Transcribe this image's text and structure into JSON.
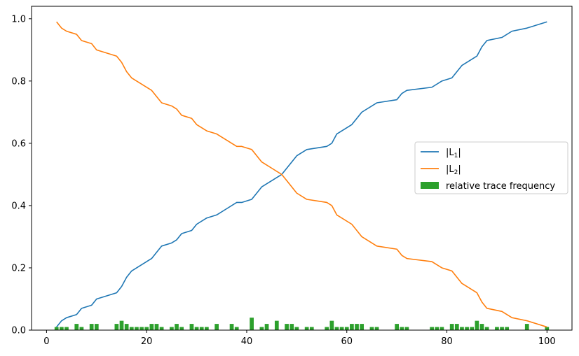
{
  "chart_data": {
    "type": "line",
    "title": "",
    "xlabel": "",
    "ylabel": "",
    "xlim": [
      -3,
      105
    ],
    "ylim": [
      0,
      1.04
    ],
    "xticks": [
      0,
      20,
      40,
      60,
      80,
      100
    ],
    "yticks": [
      0.0,
      0.2,
      0.4,
      0.6,
      0.8,
      1.0
    ],
    "xtick_labels": [
      "0",
      "20",
      "40",
      "60",
      "80",
      "100"
    ],
    "ytick_labels": [
      "0.0",
      "0.2",
      "0.4",
      "0.6",
      "0.8",
      "1.0"
    ],
    "grid": false,
    "legend_position": "center-right",
    "series": [
      {
        "name": "|L1|",
        "label_main": "|L",
        "label_sub": "1",
        "label_end": "|",
        "kind": "line",
        "color": "#1f77b4",
        "x": [
          2,
          3,
          4,
          6,
          7,
          9,
          10,
          14,
          15,
          16,
          17,
          21,
          23,
          25,
          26,
          27,
          29,
          30,
          32,
          34,
          36,
          38,
          39,
          41,
          43,
          45,
          47,
          48,
          50,
          52,
          56,
          57,
          58,
          61,
          63,
          66,
          70,
          71,
          72,
          77,
          79,
          81,
          83,
          86,
          87,
          88,
          91,
          93,
          96,
          100
        ],
        "y": [
          0.01,
          0.03,
          0.04,
          0.05,
          0.07,
          0.08,
          0.1,
          0.12,
          0.14,
          0.17,
          0.19,
          0.23,
          0.27,
          0.28,
          0.29,
          0.31,
          0.32,
          0.34,
          0.36,
          0.37,
          0.39,
          0.41,
          0.41,
          0.42,
          0.46,
          0.48,
          0.5,
          0.52,
          0.56,
          0.58,
          0.59,
          0.6,
          0.63,
          0.66,
          0.7,
          0.73,
          0.74,
          0.76,
          0.77,
          0.78,
          0.8,
          0.81,
          0.85,
          0.88,
          0.91,
          0.93,
          0.94,
          0.96,
          0.97,
          0.99
        ]
      },
      {
        "name": "|L2|",
        "label_main": "|L",
        "label_sub": "2",
        "label_end": "|",
        "kind": "line",
        "color": "#ff7f0e",
        "x": [
          2,
          3,
          4,
          6,
          7,
          9,
          10,
          14,
          15,
          16,
          17,
          21,
          23,
          25,
          26,
          27,
          29,
          30,
          32,
          34,
          36,
          38,
          39,
          41,
          43,
          45,
          47,
          48,
          50,
          52,
          56,
          57,
          58,
          61,
          63,
          66,
          70,
          71,
          72,
          77,
          79,
          81,
          83,
          86,
          87,
          88,
          91,
          93,
          96,
          100
        ],
        "y": [
          0.99,
          0.97,
          0.96,
          0.95,
          0.93,
          0.92,
          0.9,
          0.88,
          0.86,
          0.83,
          0.81,
          0.77,
          0.73,
          0.72,
          0.71,
          0.69,
          0.68,
          0.66,
          0.64,
          0.63,
          0.61,
          0.59,
          0.59,
          0.58,
          0.54,
          0.52,
          0.5,
          0.48,
          0.44,
          0.42,
          0.41,
          0.4,
          0.37,
          0.34,
          0.3,
          0.27,
          0.26,
          0.24,
          0.23,
          0.22,
          0.2,
          0.19,
          0.15,
          0.12,
          0.09,
          0.07,
          0.06,
          0.04,
          0.03,
          0.01
        ]
      },
      {
        "name": "relative trace frequency",
        "label_main": "relative trace frequency",
        "label_sub": "",
        "label_end": "",
        "kind": "bar",
        "color": "#2ca02c",
        "bar_width": 0.8,
        "x": [
          2,
          3,
          4,
          6,
          7,
          9,
          10,
          14,
          15,
          16,
          17,
          18,
          19,
          20,
          21,
          22,
          23,
          25,
          26,
          27,
          29,
          30,
          31,
          32,
          34,
          37,
          38,
          41,
          43,
          44,
          46,
          48,
          49,
          50,
          52,
          53,
          56,
          57,
          58,
          59,
          60,
          61,
          62,
          63,
          65,
          66,
          70,
          71,
          72,
          77,
          78,
          79,
          81,
          82,
          83,
          84,
          85,
          86,
          87,
          88,
          90,
          91,
          92,
          96,
          100
        ],
        "y": [
          0.01,
          0.01,
          0.01,
          0.02,
          0.01,
          0.02,
          0.02,
          0.02,
          0.03,
          0.02,
          0.01,
          0.01,
          0.01,
          0.01,
          0.02,
          0.02,
          0.01,
          0.01,
          0.02,
          0.01,
          0.02,
          0.01,
          0.01,
          0.01,
          0.02,
          0.02,
          0.01,
          0.04,
          0.01,
          0.02,
          0.03,
          0.02,
          0.02,
          0.01,
          0.01,
          0.01,
          0.01,
          0.03,
          0.01,
          0.01,
          0.01,
          0.02,
          0.02,
          0.02,
          0.01,
          0.01,
          0.02,
          0.01,
          0.01,
          0.01,
          0.01,
          0.01,
          0.02,
          0.02,
          0.01,
          0.01,
          0.01,
          0.03,
          0.02,
          0.01,
          0.01,
          0.01,
          0.01,
          0.02,
          0.01
        ]
      }
    ]
  }
}
